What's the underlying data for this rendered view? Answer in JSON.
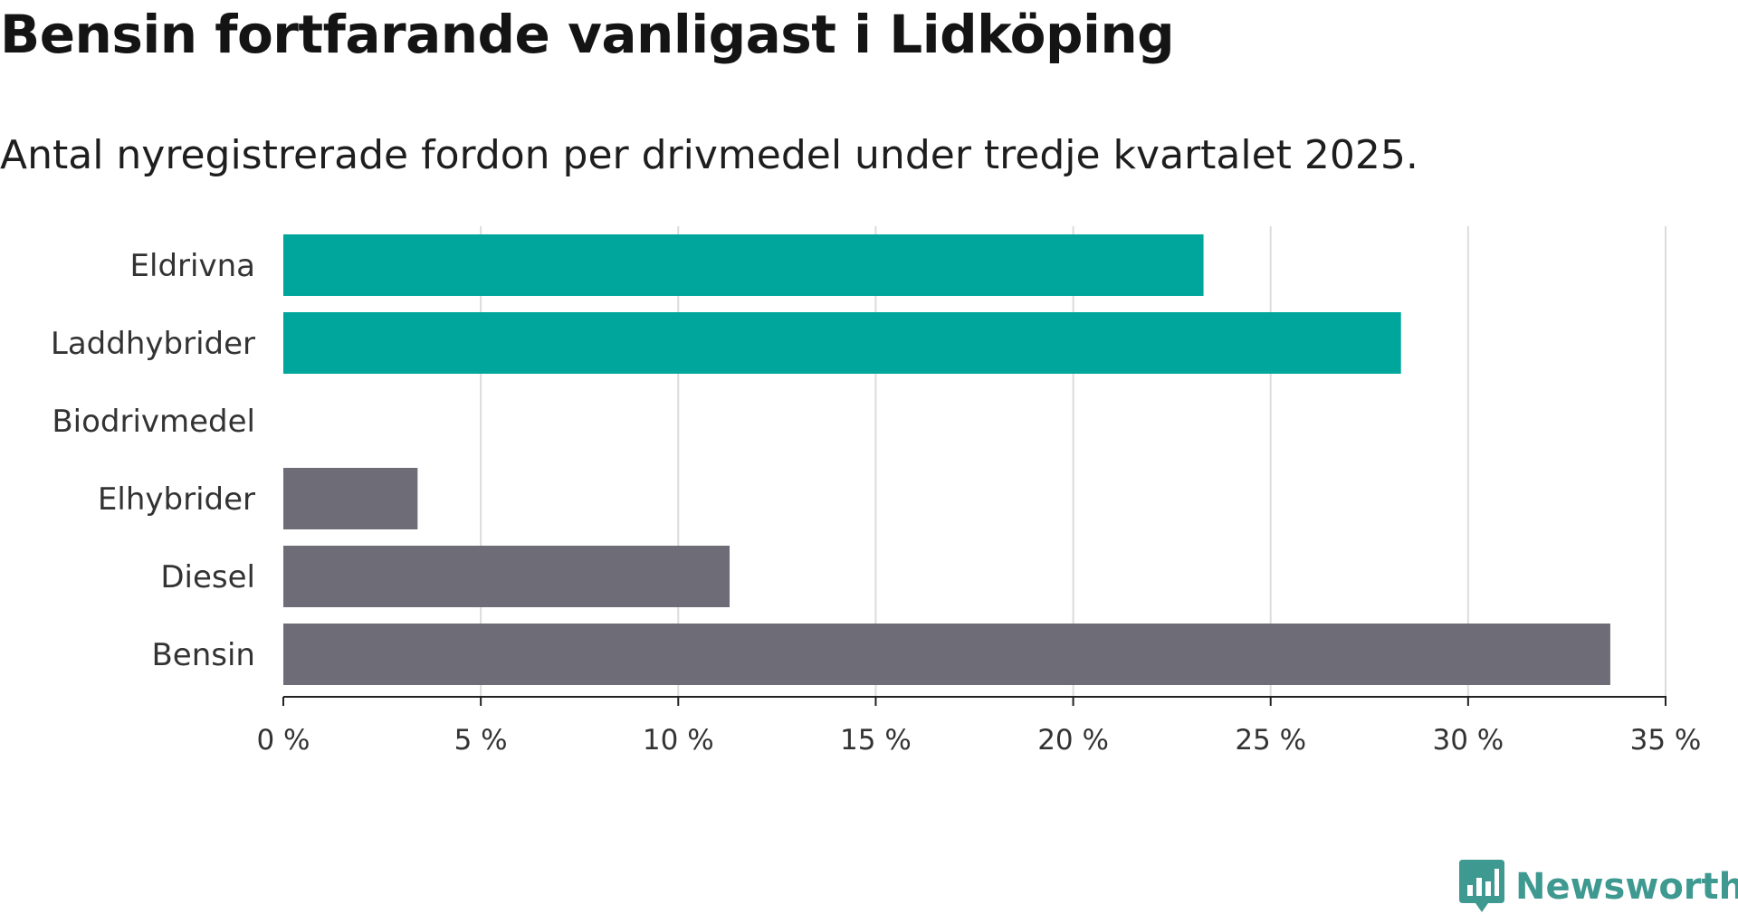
{
  "chart_data": {
    "type": "bar",
    "orientation": "horizontal",
    "title": "Bensin fortfarande vanligast i Lidköping",
    "subtitle": "Antal nyregistrerade fordon per drivmedel under tredje kvartalet 2025.",
    "categories": [
      "Eldrivna",
      "Laddhybrider",
      "Biodrivmedel",
      "Elhybrider",
      "Diesel",
      "Bensin"
    ],
    "values": [
      23.3,
      28.3,
      0,
      3.4,
      11.3,
      33.6
    ],
    "bar_colors": [
      "#00a59b",
      "#00a59b",
      "#6e6d77",
      "#6e6d77",
      "#6e6d77",
      "#6e6d77"
    ],
    "xlim": [
      0,
      35
    ],
    "xticks": [
      0,
      5,
      10,
      15,
      20,
      25,
      30,
      35
    ],
    "xtick_labels": [
      "0 %",
      "5 %",
      "10 %",
      "15 %",
      "20 %",
      "25 %",
      "30 %",
      "35 %"
    ],
    "xlabel": "",
    "ylabel": "",
    "grid": true
  },
  "brand": {
    "name": "Newsworthy",
    "icon": "newsworthy-logo-icon",
    "color": "#3e9990"
  }
}
